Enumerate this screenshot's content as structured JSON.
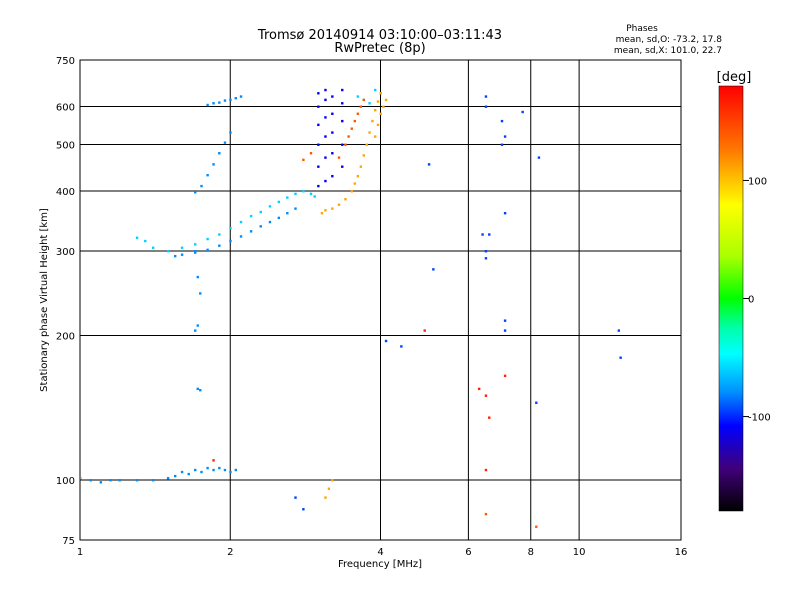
{
  "title": {
    "line1": "Tromsø 20140914 03:10:00–03:11:43",
    "line2": "RwPretec (8p)"
  },
  "stats": {
    "heading": "Phases",
    "line_o": "mean, sd,O: -73.2, 17.8",
    "line_x": "mean, sd,X: 101.0, 22.7"
  },
  "chart_data": {
    "type": "scatter",
    "xlabel": "Frequency [MHz]",
    "ylabel": "Stationary phase Virtual Height [km]",
    "x_scale": "log",
    "y_scale": "log",
    "xlim": [
      1,
      16
    ],
    "ylim": [
      75,
      750
    ],
    "x_ticks": [
      1,
      2,
      4,
      6,
      8,
      10,
      16
    ],
    "x_tick_labels": [
      "1",
      "2",
      "4",
      "6",
      "8",
      "10",
      "16"
    ],
    "y_ticks": [
      75,
      100,
      200,
      300,
      400,
      500,
      600,
      750
    ],
    "y_tick_labels": [
      "75",
      "100",
      "200",
      "300",
      "400",
      "500",
      "600",
      "750"
    ],
    "grid": true,
    "colorbar": {
      "label": "[deg]",
      "range": [
        -180,
        180
      ],
      "ticks": [
        100,
        0,
        -100
      ],
      "tick_labels": [
        "100",
        "0",
        "-100"
      ]
    },
    "series": [
      {
        "color_value": -80,
        "points": [
          [
            1.0,
            101
          ],
          [
            1.05,
            100
          ],
          [
            1.1,
            99
          ],
          [
            1.15,
            100
          ],
          [
            1.2,
            100
          ],
          [
            1.3,
            100
          ],
          [
            1.4,
            100
          ],
          [
            1.5,
            101
          ],
          [
            1.55,
            102
          ],
          [
            1.6,
            104
          ],
          [
            1.65,
            103
          ],
          [
            1.7,
            105
          ],
          [
            1.75,
            104
          ],
          [
            1.8,
            106
          ],
          [
            1.85,
            105
          ],
          [
            1.9,
            106
          ],
          [
            1.95,
            105
          ],
          [
            2.0,
            104
          ],
          [
            2.05,
            105
          ],
          [
            1.55,
            293
          ],
          [
            1.6,
            295
          ],
          [
            1.7,
            298
          ],
          [
            1.8,
            302
          ],
          [
            1.9,
            308
          ],
          [
            2.0,
            315
          ],
          [
            2.1,
            322
          ],
          [
            2.2,
            330
          ],
          [
            2.3,
            338
          ],
          [
            2.4,
            345
          ],
          [
            2.5,
            352
          ],
          [
            2.6,
            360
          ],
          [
            2.7,
            368
          ],
          [
            1.7,
            398
          ],
          [
            1.75,
            410
          ],
          [
            1.8,
            432
          ],
          [
            1.85,
            455
          ],
          [
            1.9,
            480
          ],
          [
            1.95,
            505
          ],
          [
            2.0,
            530
          ],
          [
            1.8,
            605
          ],
          [
            1.85,
            610
          ],
          [
            1.9,
            612
          ],
          [
            1.95,
            618
          ],
          [
            2.0,
            620
          ],
          [
            2.05,
            625
          ],
          [
            2.1,
            630
          ],
          [
            1.7,
            300
          ],
          [
            1.72,
            265
          ],
          [
            1.74,
            245
          ],
          [
            1.7,
            205
          ],
          [
            1.72,
            210
          ],
          [
            1.72,
            155
          ],
          [
            1.74,
            154
          ]
        ]
      },
      {
        "color_value": -110,
        "points": [
          [
            3.0,
            410
          ],
          [
            3.0,
            450
          ],
          [
            3.0,
            500
          ],
          [
            3.0,
            550
          ],
          [
            3.0,
            600
          ],
          [
            3.0,
            640
          ],
          [
            3.1,
            420
          ],
          [
            3.1,
            470
          ],
          [
            3.1,
            520
          ],
          [
            3.1,
            570
          ],
          [
            3.1,
            620
          ],
          [
            3.1,
            650
          ],
          [
            3.2,
            430
          ],
          [
            3.2,
            480
          ],
          [
            3.2,
            530
          ],
          [
            3.2,
            580
          ],
          [
            3.2,
            630
          ],
          [
            3.35,
            450
          ],
          [
            3.35,
            500
          ],
          [
            3.35,
            560
          ],
          [
            3.35,
            610
          ],
          [
            3.35,
            650
          ]
        ]
      },
      {
        "color_value": -60,
        "points": [
          [
            1.3,
            320
          ],
          [
            1.35,
            315
          ],
          [
            1.4,
            305
          ],
          [
            1.5,
            300
          ],
          [
            1.6,
            305
          ],
          [
            1.7,
            310
          ],
          [
            1.8,
            318
          ],
          [
            1.9,
            325
          ],
          [
            2.0,
            335
          ],
          [
            2.1,
            345
          ],
          [
            2.2,
            355
          ],
          [
            2.3,
            362
          ],
          [
            2.4,
            372
          ],
          [
            2.5,
            380
          ],
          [
            2.6,
            388
          ],
          [
            2.7,
            395
          ],
          [
            2.8,
            400
          ],
          [
            2.9,
            395
          ],
          [
            2.95,
            390
          ],
          [
            3.6,
            630
          ],
          [
            3.7,
            620
          ],
          [
            3.8,
            610
          ],
          [
            3.9,
            650
          ],
          [
            4.0,
            640
          ]
        ]
      },
      {
        "color_value": 110,
        "points": [
          [
            3.05,
            360
          ],
          [
            3.1,
            365
          ],
          [
            3.2,
            368
          ],
          [
            3.3,
            375
          ],
          [
            3.4,
            385
          ],
          [
            3.5,
            400
          ],
          [
            3.55,
            415
          ],
          [
            3.6,
            430
          ],
          [
            3.65,
            450
          ],
          [
            3.7,
            475
          ],
          [
            3.75,
            500
          ],
          [
            3.8,
            530
          ],
          [
            3.85,
            560
          ],
          [
            3.9,
            590
          ],
          [
            3.95,
            615
          ],
          [
            4.0,
            640
          ],
          [
            3.9,
            520
          ],
          [
            3.95,
            550
          ],
          [
            4.0,
            580
          ],
          [
            4.05,
            600
          ],
          [
            4.1,
            620
          ],
          [
            3.1,
            92
          ],
          [
            3.15,
            96
          ],
          [
            3.2,
            100
          ]
        ]
      },
      {
        "color_value": 140,
        "points": [
          [
            3.4,
            500
          ],
          [
            3.45,
            520
          ],
          [
            3.5,
            540
          ],
          [
            3.55,
            560
          ],
          [
            3.6,
            580
          ],
          [
            3.65,
            600
          ],
          [
            3.7,
            620
          ],
          [
            2.8,
            465
          ],
          [
            2.9,
            480
          ],
          [
            3.3,
            470
          ],
          [
            6.5,
            85
          ],
          [
            8.2,
            80
          ]
        ]
      },
      {
        "color_value": -95,
        "points": [
          [
            4.1,
            195
          ],
          [
            4.4,
            190
          ],
          [
            5.1,
            275
          ],
          [
            5.0,
            455
          ],
          [
            6.4,
            325
          ],
          [
            6.5,
            300
          ],
          [
            6.5,
            290
          ],
          [
            6.6,
            325
          ],
          [
            7.1,
            360
          ],
          [
            7.0,
            500
          ],
          [
            7.1,
            520
          ],
          [
            7.0,
            560
          ],
          [
            6.5,
            630
          ],
          [
            6.5,
            600
          ],
          [
            7.7,
            585
          ],
          [
            7.1,
            215
          ],
          [
            7.1,
            205
          ],
          [
            8.3,
            470
          ],
          [
            8.2,
            145
          ],
          [
            12.0,
            205
          ],
          [
            12.1,
            180
          ],
          [
            2.7,
            92
          ],
          [
            2.8,
            87
          ]
        ]
      },
      {
        "color_value": 165,
        "points": [
          [
            6.3,
            155
          ],
          [
            6.5,
            150
          ],
          [
            6.6,
            135
          ],
          [
            7.1,
            165
          ],
          [
            4.9,
            205
          ],
          [
            6.5,
            105
          ],
          [
            1.85,
            110
          ]
        ]
      }
    ]
  }
}
